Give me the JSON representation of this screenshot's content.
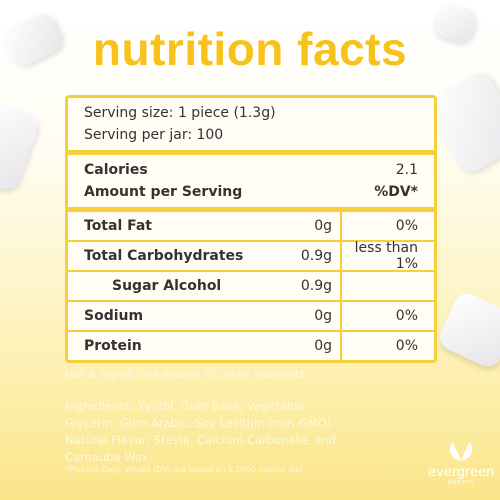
{
  "header": {
    "title": "nutrition facts"
  },
  "serving": {
    "size": "Serving size: 1 piece (1.3g)",
    "per_jar": "Serving per jar: 100"
  },
  "calories": {
    "label": "Calories",
    "value": "2.1",
    "amount_label": "Amount per Serving",
    "dv_header": "%DV*"
  },
  "rows": [
    [
      "Total Fat",
      "0g",
      "0%"
    ],
    [
      "Total Carbohydrates",
      "0.9g",
      "less than 1%"
    ],
    [
      "Sugar Alcohol",
      "0.9g"
    ],
    [
      "Sodium",
      "0g",
      "0%"
    ],
    [
      "Protein",
      "0g",
      "0%"
    ]
  ],
  "notes": {
    "source": "Not a significant source of other nutrients.",
    "ingredients": "Ingredients: Xylitol, Gum Base, Vegetable Glycerin, Gum Arabic, Soy Lecithin (non-GMO), Natural Flavor, Stevia, Calcium Carbonate, and Carnauba Wax.",
    "footnote": "*Percent Daily Values (DV) are based on a 2000 calorie diet."
  },
  "logo": {
    "text": "evergreen",
    "subtext": "SWEETS"
  }
}
